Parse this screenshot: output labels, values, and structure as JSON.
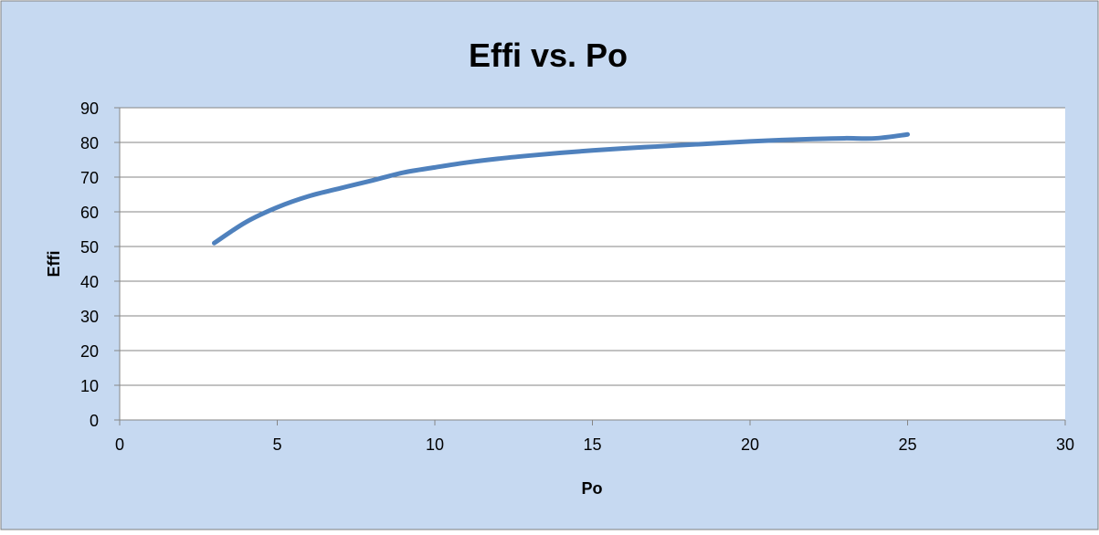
{
  "chart_data": {
    "type": "line",
    "title": "Effi vs. Po",
    "xlabel": "Po",
    "ylabel": "Effi",
    "xlim": [
      0,
      30
    ],
    "ylim": [
      0,
      90
    ],
    "xticks": [
      0,
      5,
      10,
      15,
      20,
      25,
      30
    ],
    "yticks": [
      0,
      10,
      20,
      30,
      40,
      50,
      60,
      70,
      80,
      90
    ],
    "grid": "horizontal",
    "legend": "none",
    "colors": {
      "background": "#c6d9f1",
      "plot_area": "#ffffff",
      "line": "#4f81bd",
      "gridline": "#868686",
      "border": "#7f7f7f"
    },
    "series": [
      {
        "x": [
          3,
          4,
          5,
          6,
          7,
          8,
          9,
          10,
          11,
          12,
          13,
          14,
          15,
          16,
          17,
          18,
          19,
          20,
          21,
          22,
          23,
          24,
          25
        ],
        "y": [
          51,
          57,
          61.3,
          64.5,
          66.8,
          69,
          71.3,
          72.8,
          74.2,
          75.3,
          76.2,
          77,
          77.7,
          78.3,
          78.8,
          79.3,
          79.8,
          80.3,
          80.7,
          81,
          81.2,
          81.2,
          82.3
        ]
      }
    ]
  }
}
